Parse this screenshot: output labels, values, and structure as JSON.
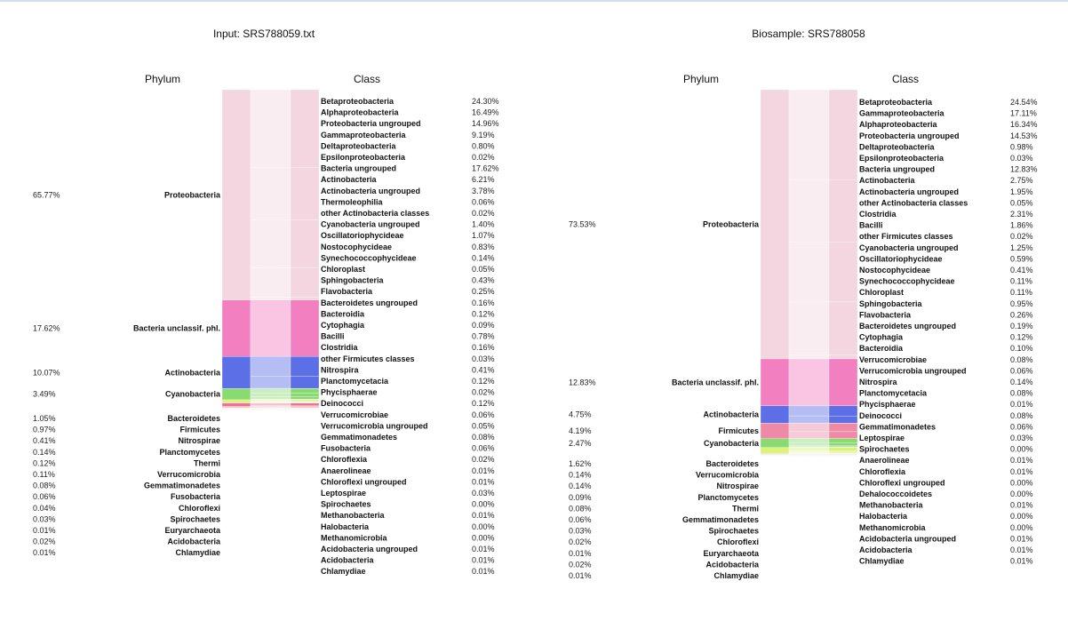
{
  "chart_data": [
    {
      "type": "sankey",
      "title": "Input: SRS788059.txt",
      "phylum_header": "Phylum",
      "class_header": "Class",
      "phyla": [
        {
          "name": "Proteobacteria",
          "value": 65.77,
          "pct": "65.77%",
          "color": "#f3d6df"
        },
        {
          "name": "Bacteria unclassif. phl.",
          "value": 17.62,
          "pct": "17.62%",
          "color": "#f27fc0"
        },
        {
          "name": "Actinobacteria",
          "value": 10.07,
          "pct": "10.07%",
          "color": "#5c6fe6"
        },
        {
          "name": "Cyanobacteria",
          "value": 3.49,
          "pct": "3.49%",
          "color": "#8ada72"
        },
        {
          "name": "Bacteroidetes",
          "value": 1.05,
          "pct": "1.05%",
          "color": "#dcf27a"
        },
        {
          "name": "Firmicutes",
          "value": 0.97,
          "pct": "0.97%",
          "color": "#f06ea8"
        },
        {
          "name": "Nitrospirae",
          "value": 0.41,
          "pct": "0.41%",
          "color": "#f0a888"
        },
        {
          "name": "Planctomycetes",
          "value": 0.14,
          "pct": "0.14%",
          "color": "#d0d0e0"
        },
        {
          "name": "Thermi",
          "value": 0.12,
          "pct": "0.12%",
          "color": "#d0d0e0"
        },
        {
          "name": "Verrucomicrobia",
          "value": 0.11,
          "pct": "0.11%",
          "color": "#d0d0e0"
        },
        {
          "name": "Gemmatimonadetes",
          "value": 0.08,
          "pct": "0.08%",
          "color": "#d0d0e0"
        },
        {
          "name": "Fusobacteria",
          "value": 0.06,
          "pct": "0.06%",
          "color": "#d0d0e0"
        },
        {
          "name": "Chloroflexi",
          "value": 0.04,
          "pct": "0.04%",
          "color": "#d0d0e0"
        },
        {
          "name": "Spirochaetes",
          "value": 0.03,
          "pct": "0.03%",
          "color": "#d0d0e0"
        },
        {
          "name": "Euryarchaeota",
          "value": 0.01,
          "pct": "0.01%",
          "color": "#d0d0e0"
        },
        {
          "name": "Acidobacteria",
          "value": 0.02,
          "pct": "0.02%",
          "color": "#d0d0e0"
        },
        {
          "name": "Chlamydiae",
          "value": 0.01,
          "pct": "0.01%",
          "color": "#d0d0e0"
        }
      ],
      "classes": [
        {
          "name": "Betaproteobacteria",
          "value": 24.3,
          "pct": "24.30%",
          "phylum": 0
        },
        {
          "name": "Alphaproteobacteria",
          "value": 16.49,
          "pct": "16.49%",
          "phylum": 0
        },
        {
          "name": "Proteobacteria ungrouped",
          "value": 14.96,
          "pct": "14.96%",
          "phylum": 0
        },
        {
          "name": "Gammaproteobacteria",
          "value": 9.19,
          "pct": "9.19%",
          "phylum": 0
        },
        {
          "name": "Deltaproteobacteria",
          "value": 0.8,
          "pct": "0.80%",
          "phylum": 0
        },
        {
          "name": "Epsilonproteobacteria",
          "value": 0.02,
          "pct": "0.02%",
          "phylum": 0
        },
        {
          "name": "Bacteria ungrouped",
          "value": 17.62,
          "pct": "17.62%",
          "phylum": 1
        },
        {
          "name": "Actinobacteria",
          "value": 6.21,
          "pct": "6.21%",
          "phylum": 2
        },
        {
          "name": "Actinobacteria ungrouped",
          "value": 3.78,
          "pct": "3.78%",
          "phylum": 2
        },
        {
          "name": "Thermoleophilia",
          "value": 0.06,
          "pct": "0.06%",
          "phylum": 2
        },
        {
          "name": "other Actinobacteria classes",
          "value": 0.02,
          "pct": "0.02%",
          "phylum": 2
        },
        {
          "name": "Cyanobacteria ungrouped",
          "value": 1.4,
          "pct": "1.40%",
          "phylum": 3
        },
        {
          "name": "Oscillatoriophycideae",
          "value": 1.07,
          "pct": "1.07%",
          "phylum": 3
        },
        {
          "name": "Nostocophycideae",
          "value": 0.83,
          "pct": "0.83%",
          "phylum": 3
        },
        {
          "name": "Synechococcophycideae",
          "value": 0.14,
          "pct": "0.14%",
          "phylum": 3
        },
        {
          "name": "Chloroplast",
          "value": 0.05,
          "pct": "0.05%",
          "phylum": 3
        },
        {
          "name": "Sphingobacteria",
          "value": 0.43,
          "pct": "0.43%",
          "phylum": 4
        },
        {
          "name": "Flavobacteria",
          "value": 0.25,
          "pct": "0.25%",
          "phylum": 4
        },
        {
          "name": "Bacteroidetes ungrouped",
          "value": 0.16,
          "pct": "0.16%",
          "phylum": 4
        },
        {
          "name": "Bacteroidia",
          "value": 0.12,
          "pct": "0.12%",
          "phylum": 4
        },
        {
          "name": "Cytophagia",
          "value": 0.09,
          "pct": "0.09%",
          "phylum": 4
        },
        {
          "name": "Bacilli",
          "value": 0.78,
          "pct": "0.78%",
          "phylum": 5
        },
        {
          "name": "Clostridia",
          "value": 0.16,
          "pct": "0.16%",
          "phylum": 5
        },
        {
          "name": "other Firmicutes classes",
          "value": 0.03,
          "pct": "0.03%",
          "phylum": 5
        },
        {
          "name": "Nitrospira",
          "value": 0.41,
          "pct": "0.41%",
          "phylum": 6
        },
        {
          "name": "Planctomycetacia",
          "value": 0.12,
          "pct": "0.12%",
          "phylum": 7
        },
        {
          "name": "Phycisphaerae",
          "value": 0.02,
          "pct": "0.02%",
          "phylum": 7
        },
        {
          "name": "Deinococci",
          "value": 0.12,
          "pct": "0.12%",
          "phylum": 8
        },
        {
          "name": "Verrucomicrobiae",
          "value": 0.06,
          "pct": "0.06%",
          "phylum": 9
        },
        {
          "name": "Verrucomicrobia ungrouped",
          "value": 0.05,
          "pct": "0.05%",
          "phylum": 9
        },
        {
          "name": "Gemmatimonadetes",
          "value": 0.08,
          "pct": "0.08%",
          "phylum": 10
        },
        {
          "name": "Fusobacteria",
          "value": 0.06,
          "pct": "0.06%",
          "phylum": 11
        },
        {
          "name": "Chloroflexia",
          "value": 0.02,
          "pct": "0.02%",
          "phylum": 12
        },
        {
          "name": "Anaerolineae",
          "value": 0.01,
          "pct": "0.01%",
          "phylum": 12
        },
        {
          "name": "Chloroflexi ungrouped",
          "value": 0.01,
          "pct": "0.01%",
          "phylum": 12
        },
        {
          "name": "Leptospirae",
          "value": 0.03,
          "pct": "0.03%",
          "phylum": 13
        },
        {
          "name": "Spirochaetes",
          "value": 0.0,
          "pct": "0.00%",
          "phylum": 13
        },
        {
          "name": "Methanobacteria",
          "value": 0.01,
          "pct": "0.01%",
          "phylum": 14
        },
        {
          "name": "Halobacteria",
          "value": 0.0,
          "pct": "0.00%",
          "phylum": 14
        },
        {
          "name": "Methanomicrobia",
          "value": 0.0,
          "pct": "0.00%",
          "phylum": 14
        },
        {
          "name": "Acidobacteria ungrouped",
          "value": 0.01,
          "pct": "0.01%",
          "phylum": 15
        },
        {
          "name": "Acidobacteria",
          "value": 0.01,
          "pct": "0.01%",
          "phylum": 15
        },
        {
          "name": "Chlamydiae",
          "value": 0.01,
          "pct": "0.01%",
          "phylum": 16
        }
      ]
    },
    {
      "type": "sankey",
      "title": "Biosample: SRS788058",
      "phylum_header": "Phylum",
      "class_header": "Class",
      "phyla": [
        {
          "name": "Proteobacteria",
          "value": 73.53,
          "pct": "73.53%",
          "color": "#f3d6df"
        },
        {
          "name": "Bacteria unclassif. phl.",
          "value": 12.83,
          "pct": "12.83%",
          "color": "#f27fc0"
        },
        {
          "name": "Actinobacteria",
          "value": 4.75,
          "pct": "4.75%",
          "color": "#5c6fe6"
        },
        {
          "name": "Firmicutes",
          "value": 4.19,
          "pct": "4.19%",
          "color": "#ee8aa6"
        },
        {
          "name": "Cyanobacteria",
          "value": 2.47,
          "pct": "2.47%",
          "color": "#8ada72"
        },
        {
          "name": "Bacteroidetes",
          "value": 1.62,
          "pct": "1.62%",
          "color": "#dcf27a"
        },
        {
          "name": "Verrucomicrobia",
          "value": 0.14,
          "pct": "0.14%",
          "color": "#d0d0e0"
        },
        {
          "name": "Nitrospirae",
          "value": 0.14,
          "pct": "0.14%",
          "color": "#f0a888"
        },
        {
          "name": "Planctomycetes",
          "value": 0.09,
          "pct": "0.09%",
          "color": "#d0d0e0"
        },
        {
          "name": "Thermi",
          "value": 0.08,
          "pct": "0.08%",
          "color": "#d0d0e0"
        },
        {
          "name": "Gemmatimonadetes",
          "value": 0.06,
          "pct": "0.06%",
          "color": "#d0d0e0"
        },
        {
          "name": "Spirochaetes",
          "value": 0.03,
          "pct": "0.03%",
          "color": "#d0d0e0"
        },
        {
          "name": "Chloroflexi",
          "value": 0.02,
          "pct": "0.02%",
          "color": "#d0d0e0"
        },
        {
          "name": "Euryarchaeota",
          "value": 0.01,
          "pct": "0.01%",
          "color": "#d0d0e0"
        },
        {
          "name": "Acidobacteria",
          "value": 0.02,
          "pct": "0.02%",
          "color": "#d0d0e0"
        },
        {
          "name": "Chlamydiae",
          "value": 0.01,
          "pct": "0.01%",
          "color": "#d0d0e0"
        }
      ],
      "classes": [
        {
          "name": "Betaproteobacteria",
          "value": 24.54,
          "pct": "24.54%",
          "phylum": 0
        },
        {
          "name": "Gammaproteobacteria",
          "value": 17.11,
          "pct": "17.11%",
          "phylum": 0
        },
        {
          "name": "Alphaproteobacteria",
          "value": 16.34,
          "pct": "16.34%",
          "phylum": 0
        },
        {
          "name": "Proteobacteria ungrouped",
          "value": 14.53,
          "pct": "14.53%",
          "phylum": 0
        },
        {
          "name": "Deltaproteobacteria",
          "value": 0.98,
          "pct": "0.98%",
          "phylum": 0
        },
        {
          "name": "Epsilonproteobacteria",
          "value": 0.03,
          "pct": "0.03%",
          "phylum": 0
        },
        {
          "name": "Bacteria ungrouped",
          "value": 12.83,
          "pct": "12.83%",
          "phylum": 1
        },
        {
          "name": "Actinobacteria",
          "value": 2.75,
          "pct": "2.75%",
          "phylum": 2
        },
        {
          "name": "Actinobacteria ungrouped",
          "value": 1.95,
          "pct": "1.95%",
          "phylum": 2
        },
        {
          "name": "other Actinobacteria classes",
          "value": 0.05,
          "pct": "0.05%",
          "phylum": 2
        },
        {
          "name": "Clostridia",
          "value": 2.31,
          "pct": "2.31%",
          "phylum": 3
        },
        {
          "name": "Bacilli",
          "value": 1.86,
          "pct": "1.86%",
          "phylum": 3
        },
        {
          "name": "other Firmicutes classes",
          "value": 0.02,
          "pct": "0.02%",
          "phylum": 3
        },
        {
          "name": "Cyanobacteria ungrouped",
          "value": 1.25,
          "pct": "1.25%",
          "phylum": 4
        },
        {
          "name": "Oscillatoriophycideae",
          "value": 0.59,
          "pct": "0.59%",
          "phylum": 4
        },
        {
          "name": "Nostocophycideae",
          "value": 0.41,
          "pct": "0.41%",
          "phylum": 4
        },
        {
          "name": "Synechococcophycideae",
          "value": 0.11,
          "pct": "0.11%",
          "phylum": 4
        },
        {
          "name": "Chloroplast",
          "value": 0.11,
          "pct": "0.11%",
          "phylum": 4
        },
        {
          "name": "Sphingobacteria",
          "value": 0.95,
          "pct": "0.95%",
          "phylum": 5
        },
        {
          "name": "Flavobacteria",
          "value": 0.26,
          "pct": "0.26%",
          "phylum": 5
        },
        {
          "name": "Bacteroidetes ungrouped",
          "value": 0.19,
          "pct": "0.19%",
          "phylum": 5
        },
        {
          "name": "Cytophagia",
          "value": 0.12,
          "pct": "0.12%",
          "phylum": 5
        },
        {
          "name": "Bacteroidia",
          "value": 0.1,
          "pct": "0.10%",
          "phylum": 5
        },
        {
          "name": "Verrucomicrobiae",
          "value": 0.08,
          "pct": "0.08%",
          "phylum": 6
        },
        {
          "name": "Verrucomicrobia ungrouped",
          "value": 0.06,
          "pct": "0.06%",
          "phylum": 6
        },
        {
          "name": "Nitrospira",
          "value": 0.14,
          "pct": "0.14%",
          "phylum": 7
        },
        {
          "name": "Planctomycetacia",
          "value": 0.08,
          "pct": "0.08%",
          "phylum": 8
        },
        {
          "name": "Phycisphaerae",
          "value": 0.01,
          "pct": "0.01%",
          "phylum": 8
        },
        {
          "name": "Deinococci",
          "value": 0.08,
          "pct": "0.08%",
          "phylum": 9
        },
        {
          "name": "Gemmatimonadetes",
          "value": 0.06,
          "pct": "0.06%",
          "phylum": 10
        },
        {
          "name": "Leptospirae",
          "value": 0.03,
          "pct": "0.03%",
          "phylum": 11
        },
        {
          "name": "Spirochaetes",
          "value": 0.0,
          "pct": "0.00%",
          "phylum": 11
        },
        {
          "name": "Anaerolineae",
          "value": 0.01,
          "pct": "0.01%",
          "phylum": 12
        },
        {
          "name": "Chloroflexia",
          "value": 0.01,
          "pct": "0.01%",
          "phylum": 12
        },
        {
          "name": "Chloroflexi ungrouped",
          "value": 0.0,
          "pct": "0.00%",
          "phylum": 12
        },
        {
          "name": "Dehalococcoidetes",
          "value": 0.0,
          "pct": "0.00%",
          "phylum": 12
        },
        {
          "name": "Methanobacteria",
          "value": 0.01,
          "pct": "0.01%",
          "phylum": 13
        },
        {
          "name": "Halobacteria",
          "value": 0.0,
          "pct": "0.00%",
          "phylum": 13
        },
        {
          "name": "Methanomicrobia",
          "value": 0.0,
          "pct": "0.00%",
          "phylum": 13
        },
        {
          "name": "Acidobacteria ungrouped",
          "value": 0.01,
          "pct": "0.01%",
          "phylum": 14
        },
        {
          "name": "Acidobacteria",
          "value": 0.01,
          "pct": "0.01%",
          "phylum": 14
        },
        {
          "name": "Chlamydiae",
          "value": 0.01,
          "pct": "0.01%",
          "phylum": 15
        }
      ]
    }
  ]
}
